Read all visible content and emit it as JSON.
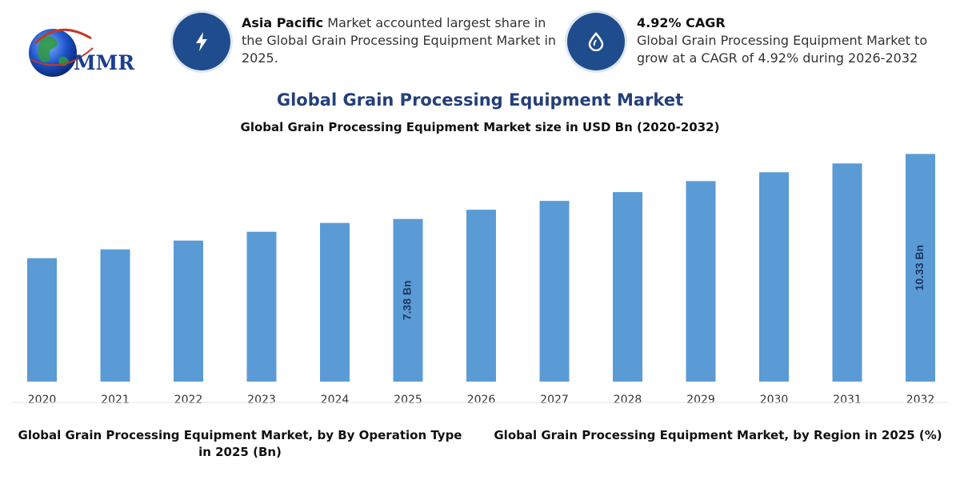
{
  "logo": {
    "text": "MMR"
  },
  "info": [
    {
      "bold": "Asia Pacific",
      "text": " Market accounted largest share in the Global Grain Processing Equipment Market in 2025.",
      "icon": "lightning-icon"
    },
    {
      "bold": "4.92% CAGR",
      "text": "Global Grain Processing Equipment Market to grow at a CAGR of 4.92% during 2026-2032",
      "icon": "drop-icon"
    }
  ],
  "chart_data": {
    "type": "bar",
    "title": "Global Grain Processing Equipment Market",
    "subtitle": "Global Grain Processing Equipment Market size in USD Bn (2020-2032)",
    "categories": [
      "2020",
      "2021",
      "2022",
      "2023",
      "2024",
      "2025",
      "2026",
      "2027",
      "2028",
      "2029",
      "2030",
      "2031",
      "2032"
    ],
    "values": [
      5.6,
      6.0,
      6.4,
      6.8,
      7.2,
      7.38,
      7.8,
      8.2,
      8.6,
      9.1,
      9.5,
      9.9,
      10.33
    ],
    "data_labels": {
      "2025": "7.38 Bn",
      "2032": "10.33 Bn"
    },
    "ylim": [
      0,
      10.6
    ],
    "bar_color": "#5b9bd5",
    "label_color": "#1f3864"
  },
  "bottom": {
    "left_title": "Global Grain Processing Equipment Market, by By Operation Type in 2025 (Bn)",
    "right_title": "Global Grain Processing Equipment Market, by Region in 2025 (%)"
  }
}
